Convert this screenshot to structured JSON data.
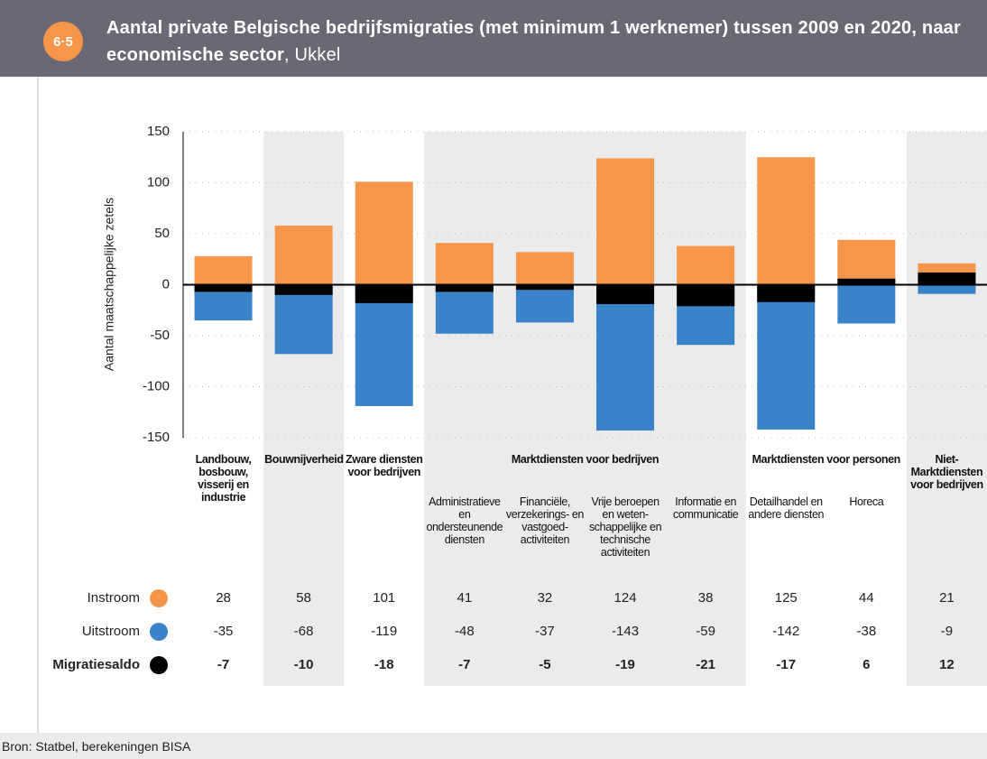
{
  "chart_data": {
    "type": "bar",
    "badge": "6·5",
    "title": "Aantal private Belgische bedrijfsmigraties (met minimum 1 werknemer) tussen 2009 en 2020, naar economische sector",
    "subtitle": ", Ukkel",
    "y_label": "Aantal maatschappelijke zetels",
    "source": "Bron: Statbel, berekeningen BISA",
    "categories": [
      "Landbouw, bosbouw, visserij en industrie",
      "Bouwnijverheid",
      "Zware diensten voor bedrijven",
      "Administratieve en ondersteunende diensten",
      "Financiële, verzekerings- en vastgoed-activiteiten",
      "Vrije beroepen en weten-schappelijke en technische activiteiten",
      "Informatie en communicatie",
      "Detailhandel en andere diensten",
      "Horeca",
      "Niet-Marktdiensten voor bedrijven"
    ],
    "groups": [
      null,
      null,
      null,
      "Marktdiensten voor bedrijven",
      "Marktdiensten voor bedrijven",
      "Marktdiensten voor bedrijven",
      "Marktdiensten voor bedrijven",
      "Marktdiensten voor personen",
      "Marktdiensten voor personen",
      null
    ],
    "series": [
      {
        "name": "Instroom",
        "color": "#f5964a",
        "values": [
          28,
          58,
          101,
          41,
          32,
          124,
          38,
          125,
          44,
          21
        ]
      },
      {
        "name": "Uitstroom",
        "color": "#3a83c9",
        "values": [
          -35,
          -68,
          -119,
          -48,
          -37,
          -143,
          -59,
          -142,
          -38,
          -9
        ]
      },
      {
        "name": "Migratiesaldo",
        "color": "#000000",
        "values": [
          -7,
          -10,
          -18,
          -7,
          -5,
          -19,
          -21,
          -17,
          6,
          12
        ]
      }
    ],
    "ylim": [
      -150,
      150
    ],
    "yticks": [
      -150,
      -100,
      -50,
      0,
      50,
      100,
      150
    ],
    "grid": true
  }
}
